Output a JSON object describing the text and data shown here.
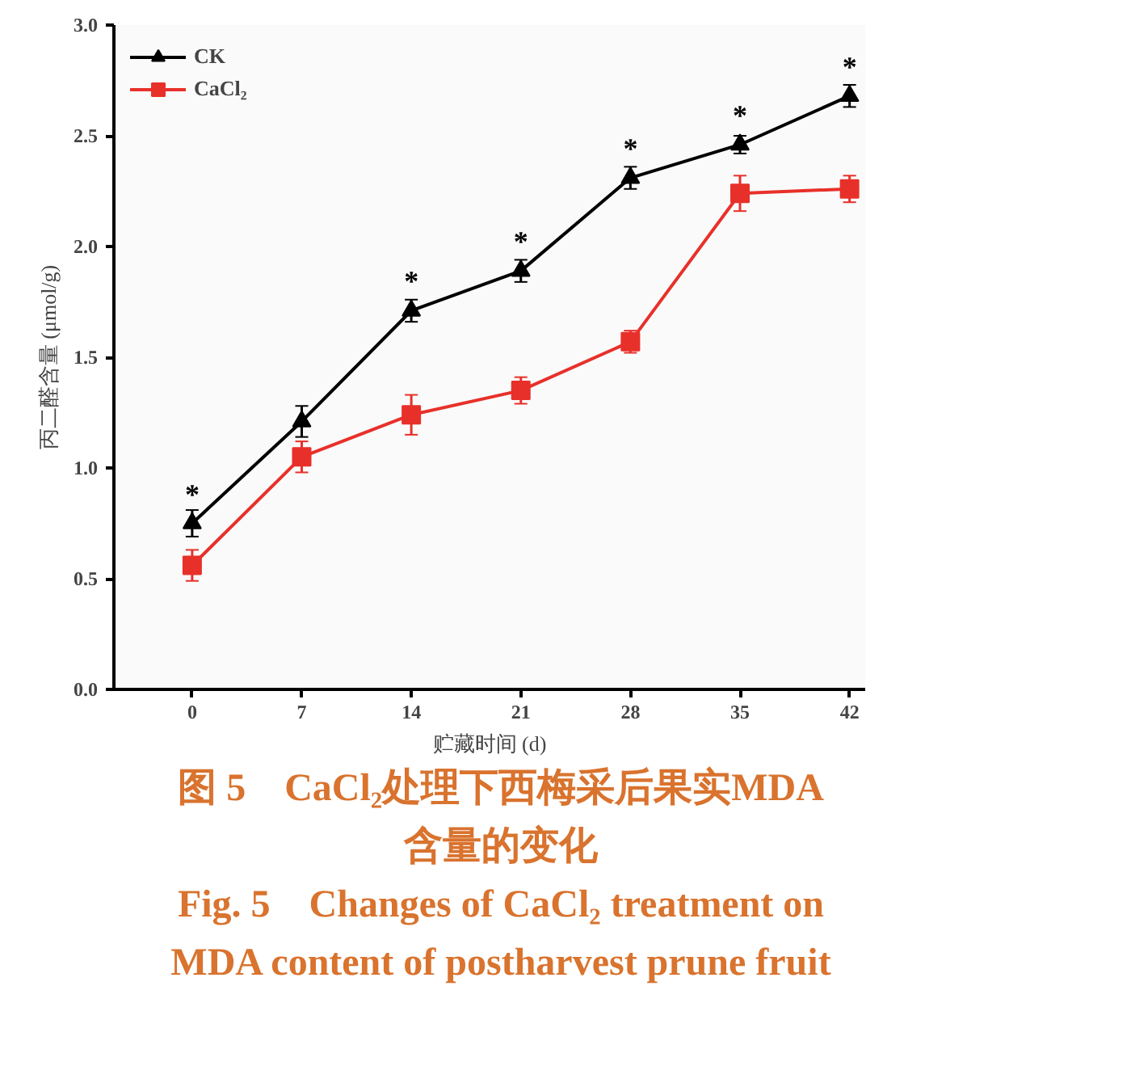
{
  "chart_data": {
    "type": "line",
    "title": "图 5　CaCl₂处理下西梅采后果实MDA 含量的变化",
    "subtitle": "Fig. 5　Changes of CaCl₂ treatment on MDA content of postharvest prune fruit",
    "xlabel": "贮藏时间 (d)",
    "ylabel": "丙二醛含量 (μmol/g)",
    "x": [
      0,
      7,
      14,
      21,
      28,
      35,
      42
    ],
    "series": [
      {
        "name": "CK",
        "color": "#000000",
        "marker": "triangle",
        "values": [
          0.75,
          1.21,
          1.71,
          1.89,
          2.31,
          2.46,
          2.68
        ],
        "errors": [
          0.06,
          0.07,
          0.05,
          0.05,
          0.05,
          0.04,
          0.05
        ]
      },
      {
        "name": "CaCl₂",
        "color": "#e8302a",
        "marker": "square",
        "values": [
          0.56,
          1.05,
          1.24,
          1.35,
          1.57,
          2.24,
          2.26
        ],
        "errors": [
          0.07,
          0.07,
          0.09,
          0.06,
          0.05,
          0.08,
          0.06
        ]
      }
    ],
    "xlim": [
      -5,
      43
    ],
    "xticks": [
      0,
      7,
      14,
      21,
      28,
      35,
      42
    ],
    "ylim": [
      0,
      3
    ],
    "yticks": [
      {
        "value": 0,
        "label": "0.0"
      },
      0.5,
      {
        "value": 1,
        "label": "1.0"
      },
      1.5,
      {
        "value": 2,
        "label": "2.0"
      },
      2.5,
      {
        "value": 3,
        "label": "3.0"
      }
    ],
    "grid": false,
    "legend": "top left",
    "line_style": "solid",
    "annotations": [
      {
        "text": "*",
        "x": 0,
        "y": 0.75
      },
      {
        "text": "*",
        "x": 14,
        "y": 1.71
      },
      {
        "text": "*",
        "x": 21,
        "y": 1.89
      },
      {
        "text": "*",
        "x": 28,
        "y": 2.31
      },
      {
        "text": "*",
        "x": 35,
        "y": 2.46
      },
      {
        "text": "*",
        "x": 42,
        "y": 2.68
      }
    ]
  }
}
